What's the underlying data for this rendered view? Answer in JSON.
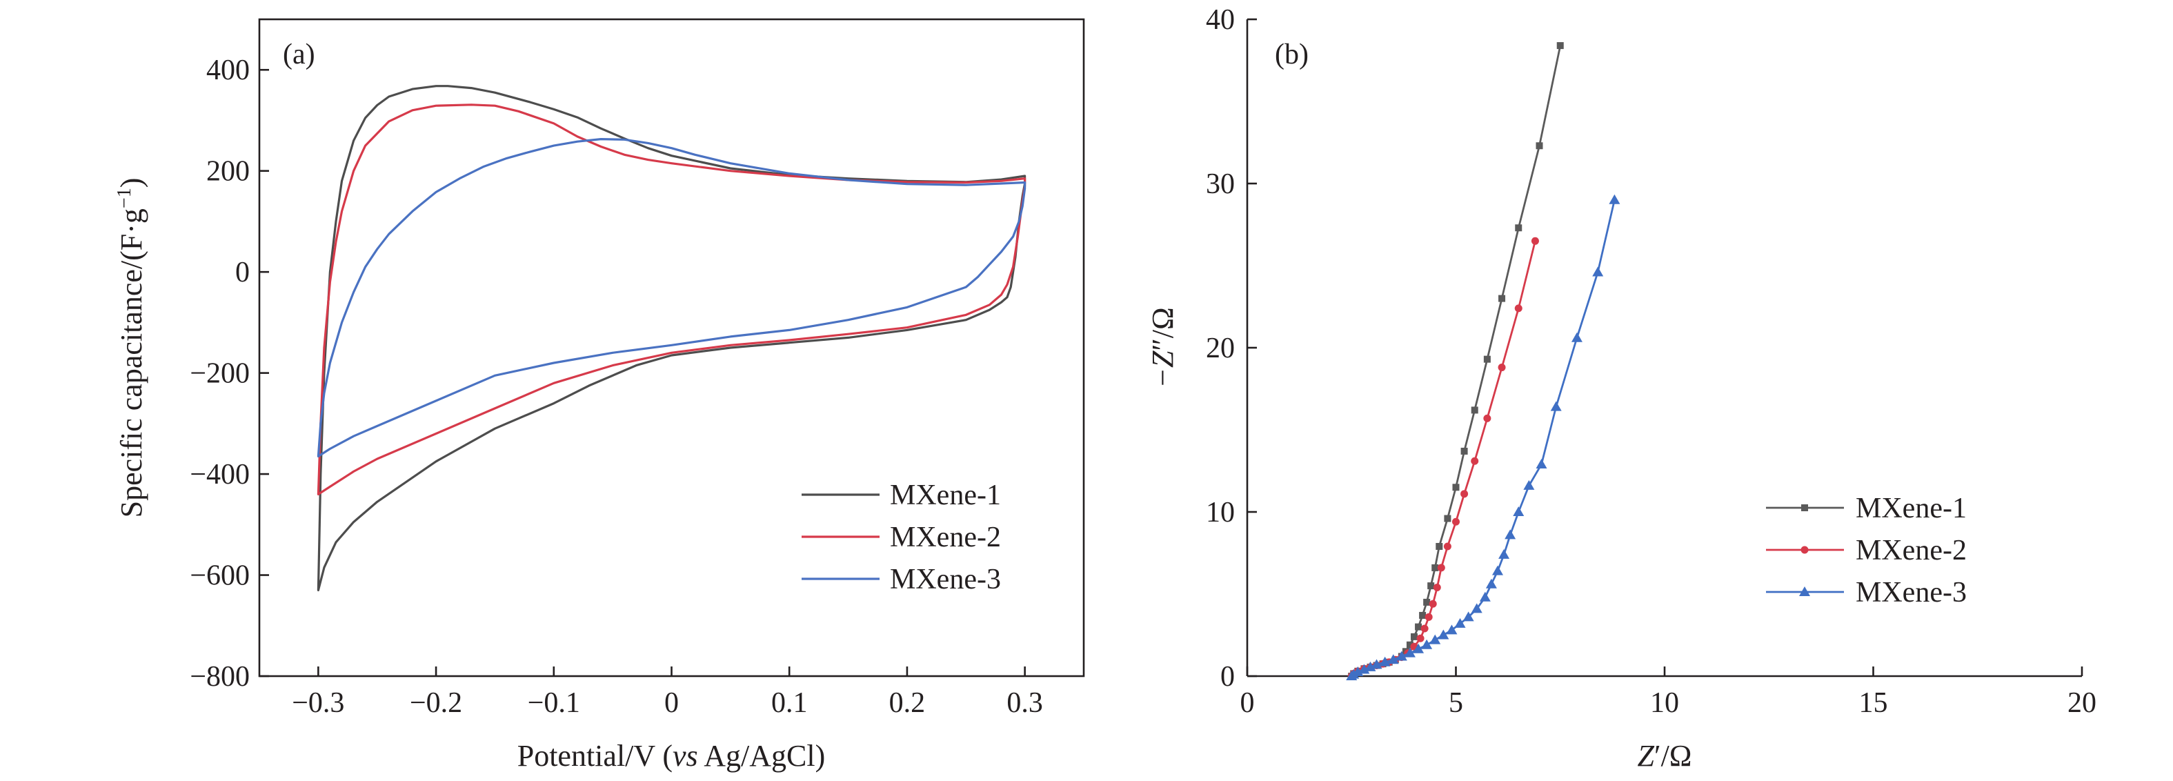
{
  "chart_data": [
    {
      "type": "line",
      "panel": "(a)",
      "xlabel_parts": [
        "Potential/V (",
        "vs",
        " Ag/AgCl)"
      ],
      "ylabel_parts": [
        "Specific capacitance/(F·g",
        "−1",
        ")"
      ],
      "xlim": [
        -0.35,
        0.35
      ],
      "ylim": [
        -800,
        500
      ],
      "x_ticks": [
        -0.3,
        -0.2,
        -0.1,
        0,
        0.1,
        0.2,
        0.3
      ],
      "x_tick_labels": [
        "−0.3",
        "−0.2",
        "−0.1",
        "0",
        "0.1",
        "0.2",
        "0.3"
      ],
      "y_ticks": [
        -800,
        -600,
        -400,
        -200,
        0,
        200,
        400
      ],
      "y_tick_labels": [
        "−800",
        "−600",
        "−400",
        "−200",
        "0",
        "200",
        "400"
      ],
      "grid": false,
      "legend_position": "bottom-right",
      "series": [
        {
          "name": "MXene-1",
          "color": "#4d4d4d",
          "points": [
            [
              -0.3,
              -630
            ],
            [
              -0.298,
              -400
            ],
            [
              -0.295,
              -200
            ],
            [
              -0.29,
              0
            ],
            [
              -0.285,
              100
            ],
            [
              -0.28,
              180
            ],
            [
              -0.27,
              260
            ],
            [
              -0.26,
              305
            ],
            [
              -0.25,
              330
            ],
            [
              -0.24,
              347
            ],
            [
              -0.22,
              362
            ],
            [
              -0.2,
              368
            ],
            [
              -0.19,
              368
            ],
            [
              -0.17,
              364
            ],
            [
              -0.15,
              355
            ],
            [
              -0.12,
              336
            ],
            [
              -0.1,
              322
            ],
            [
              -0.08,
              306
            ],
            [
              -0.06,
              284
            ],
            [
              -0.04,
              264
            ],
            [
              -0.02,
              245
            ],
            [
              0,
              230
            ],
            [
              0.05,
              205
            ],
            [
              0.1,
              192
            ],
            [
              0.15,
              185
            ],
            [
              0.2,
              180
            ],
            [
              0.25,
              178
            ],
            [
              0.28,
              183
            ],
            [
              0.3,
              190
            ],
            [
              0.3,
              175
            ],
            [
              0.298,
              150
            ],
            [
              0.295,
              100
            ],
            [
              0.292,
              30
            ],
            [
              0.288,
              -30
            ],
            [
              0.285,
              -50
            ],
            [
              0.28,
              -60
            ],
            [
              0.27,
              -75
            ],
            [
              0.25,
              -95
            ],
            [
              0.2,
              -115
            ],
            [
              0.15,
              -130
            ],
            [
              0.1,
              -140
            ],
            [
              0.05,
              -150
            ],
            [
              0,
              -165
            ],
            [
              -0.03,
              -185
            ],
            [
              -0.07,
              -225
            ],
            [
              -0.1,
              -260
            ],
            [
              -0.15,
              -310
            ],
            [
              -0.2,
              -375
            ],
            [
              -0.25,
              -455
            ],
            [
              -0.27,
              -495
            ],
            [
              -0.285,
              -535
            ],
            [
              -0.295,
              -585
            ],
            [
              -0.3,
              -630
            ]
          ]
        },
        {
          "name": "MXene-2",
          "color": "#d63a4a",
          "points": [
            [
              -0.3,
              -440
            ],
            [
              -0.298,
              -300
            ],
            [
              -0.295,
              -150
            ],
            [
              -0.29,
              -20
            ],
            [
              -0.285,
              60
            ],
            [
              -0.28,
              120
            ],
            [
              -0.27,
              200
            ],
            [
              -0.26,
              250
            ],
            [
              -0.24,
              298
            ],
            [
              -0.22,
              320
            ],
            [
              -0.2,
              329
            ],
            [
              -0.17,
              331
            ],
            [
              -0.15,
              329
            ],
            [
              -0.13,
              318
            ],
            [
              -0.1,
              294
            ],
            [
              -0.08,
              268
            ],
            [
              -0.06,
              248
            ],
            [
              -0.04,
              232
            ],
            [
              -0.02,
              222
            ],
            [
              0,
              215
            ],
            [
              0.05,
              200
            ],
            [
              0.1,
              190
            ],
            [
              0.15,
              182
            ],
            [
              0.2,
              178
            ],
            [
              0.25,
              177
            ],
            [
              0.28,
              180
            ],
            [
              0.3,
              185
            ],
            [
              0.3,
              170
            ],
            [
              0.298,
              140
            ],
            [
              0.294,
              70
            ],
            [
              0.29,
              10
            ],
            [
              0.285,
              -25
            ],
            [
              0.28,
              -45
            ],
            [
              0.27,
              -65
            ],
            [
              0.25,
              -85
            ],
            [
              0.2,
              -110
            ],
            [
              0.15,
              -123
            ],
            [
              0.1,
              -135
            ],
            [
              0.05,
              -145
            ],
            [
              0,
              -160
            ],
            [
              -0.05,
              -185
            ],
            [
              -0.1,
              -220
            ],
            [
              -0.15,
              -270
            ],
            [
              -0.2,
              -320
            ],
            [
              -0.25,
              -370
            ],
            [
              -0.27,
              -395
            ],
            [
              -0.29,
              -425
            ],
            [
              -0.3,
              -440
            ]
          ]
        },
        {
          "name": "MXene-3",
          "color": "#4a72c2",
          "points": [
            [
              -0.3,
              -365
            ],
            [
              -0.298,
              -300
            ],
            [
              -0.295,
              -240
            ],
            [
              -0.29,
              -180
            ],
            [
              -0.28,
              -100
            ],
            [
              -0.27,
              -40
            ],
            [
              -0.26,
              10
            ],
            [
              -0.25,
              45
            ],
            [
              -0.24,
              75
            ],
            [
              -0.22,
              120
            ],
            [
              -0.2,
              158
            ],
            [
              -0.18,
              185
            ],
            [
              -0.16,
              208
            ],
            [
              -0.14,
              225
            ],
            [
              -0.12,
              238
            ],
            [
              -0.1,
              250
            ],
            [
              -0.08,
              258
            ],
            [
              -0.06,
              263
            ],
            [
              -0.04,
              262
            ],
            [
              -0.02,
              255
            ],
            [
              0,
              245
            ],
            [
              0.02,
              232
            ],
            [
              0.05,
              215
            ],
            [
              0.1,
              195
            ],
            [
              0.15,
              182
            ],
            [
              0.2,
              174
            ],
            [
              0.25,
              172
            ],
            [
              0.28,
              175
            ],
            [
              0.3,
              177
            ],
            [
              0.3,
              165
            ],
            [
              0.298,
              130
            ],
            [
              0.295,
              100
            ],
            [
              0.29,
              70
            ],
            [
              0.28,
              40
            ],
            [
              0.27,
              15
            ],
            [
              0.26,
              -10
            ],
            [
              0.25,
              -30
            ],
            [
              0.2,
              -70
            ],
            [
              0.15,
              -95
            ],
            [
              0.1,
              -115
            ],
            [
              0.05,
              -128
            ],
            [
              0,
              -145
            ],
            [
              -0.05,
              -160
            ],
            [
              -0.1,
              -180
            ],
            [
              -0.15,
              -205
            ],
            [
              -0.2,
              -255
            ],
            [
              -0.25,
              -305
            ],
            [
              -0.27,
              -325
            ],
            [
              -0.29,
              -350
            ],
            [
              -0.3,
              -365
            ]
          ]
        }
      ]
    },
    {
      "type": "scatter",
      "panel": "(b)",
      "xlabel_parts": [
        "Z",
        "′/Ω"
      ],
      "ylabel_parts": [
        "−Z",
        "″/Ω"
      ],
      "xlim": [
        0,
        20
      ],
      "ylim": [
        0,
        40
      ],
      "x_ticks": [
        0,
        5,
        10,
        15,
        20
      ],
      "x_tick_labels": [
        "0",
        "5",
        "10",
        "15",
        "20"
      ],
      "y_ticks": [
        0,
        10,
        20,
        30,
        40
      ],
      "y_tick_labels": [
        "0",
        "10",
        "20",
        "30",
        "40"
      ],
      "grid": false,
      "legend_position": "bottom-right",
      "series": [
        {
          "name": "MXene-1",
          "color": "#5a5a5a",
          "marker": "square",
          "points": [
            [
              2.5,
              0
            ],
            [
              2.55,
              0.15
            ],
            [
              2.65,
              0.3
            ],
            [
              2.8,
              0.45
            ],
            [
              2.95,
              0.55
            ],
            [
              3.1,
              0.65
            ],
            [
              3.25,
              0.75
            ],
            [
              3.4,
              0.85
            ],
            [
              3.55,
              1.0
            ],
            [
              3.7,
              1.2
            ],
            [
              3.8,
              1.5
            ],
            [
              3.9,
              1.9
            ],
            [
              4.0,
              2.4
            ],
            [
              4.1,
              3.0
            ],
            [
              4.2,
              3.7
            ],
            [
              4.3,
              4.5
            ],
            [
              4.4,
              5.5
            ],
            [
              4.5,
              6.6
            ],
            [
              4.6,
              7.9
            ],
            [
              4.8,
              9.6
            ],
            [
              5.0,
              11.5
            ],
            [
              5.2,
              13.7
            ],
            [
              5.45,
              16.2
            ],
            [
              5.75,
              19.3
            ],
            [
              6.1,
              23.0
            ],
            [
              6.5,
              27.3
            ],
            [
              7.0,
              32.3
            ],
            [
              7.5,
              38.4
            ]
          ]
        },
        {
          "name": "MXene-2",
          "color": "#d63a4a",
          "marker": "circle",
          "points": [
            [
              2.5,
              0
            ],
            [
              2.55,
              0.15
            ],
            [
              2.65,
              0.3
            ],
            [
              2.8,
              0.45
            ],
            [
              2.95,
              0.55
            ],
            [
              3.1,
              0.65
            ],
            [
              3.25,
              0.75
            ],
            [
              3.4,
              0.85
            ],
            [
              3.55,
              1.0
            ],
            [
              3.7,
              1.15
            ],
            [
              3.85,
              1.4
            ],
            [
              4.0,
              1.8
            ],
            [
              4.15,
              2.3
            ],
            [
              4.25,
              2.9
            ],
            [
              4.35,
              3.6
            ],
            [
              4.45,
              4.4
            ],
            [
              4.55,
              5.4
            ],
            [
              4.65,
              6.6
            ],
            [
              4.8,
              7.9
            ],
            [
              5.0,
              9.4
            ],
            [
              5.2,
              11.1
            ],
            [
              5.45,
              13.1
            ],
            [
              5.75,
              15.7
            ],
            [
              6.1,
              18.8
            ],
            [
              6.5,
              22.4
            ],
            [
              6.9,
              26.5
            ]
          ]
        },
        {
          "name": "MXene-3",
          "color": "#3f6fc4",
          "marker": "triangle",
          "points": [
            [
              2.5,
              0
            ],
            [
              2.55,
              0.1
            ],
            [
              2.65,
              0.25
            ],
            [
              2.8,
              0.4
            ],
            [
              2.95,
              0.55
            ],
            [
              3.1,
              0.7
            ],
            [
              3.3,
              0.85
            ],
            [
              3.5,
              1.0
            ],
            [
              3.7,
              1.2
            ],
            [
              3.9,
              1.4
            ],
            [
              4.1,
              1.65
            ],
            [
              4.3,
              1.9
            ],
            [
              4.5,
              2.2
            ],
            [
              4.7,
              2.5
            ],
            [
              4.9,
              2.8
            ],
            [
              5.1,
              3.2
            ],
            [
              5.3,
              3.6
            ],
            [
              5.5,
              4.1
            ],
            [
              5.7,
              4.8
            ],
            [
              5.85,
              5.6
            ],
            [
              6.0,
              6.4
            ],
            [
              6.15,
              7.4
            ],
            [
              6.3,
              8.6
            ],
            [
              6.5,
              10.0
            ],
            [
              6.75,
              11.6
            ],
            [
              7.05,
              12.9
            ],
            [
              7.4,
              16.4
            ],
            [
              7.9,
              20.6
            ],
            [
              8.4,
              24.6
            ],
            [
              8.8,
              29.0
            ]
          ]
        }
      ]
    }
  ]
}
